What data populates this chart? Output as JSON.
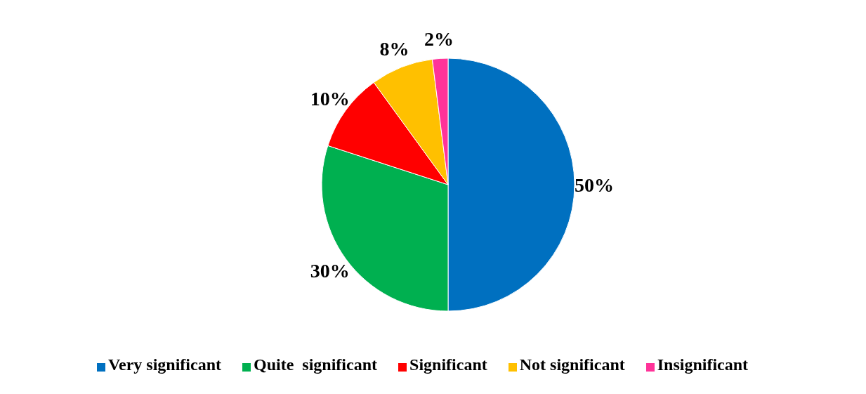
{
  "chart_data": {
    "type": "pie",
    "categories": [
      "Very significant",
      "Quite  significant",
      "Significant",
      "Not significant",
      "Insignificant"
    ],
    "values": [
      50,
      30,
      10,
      8,
      2
    ],
    "value_labels": [
      "50%",
      "30%",
      "10%",
      "8%",
      "2%"
    ],
    "colors": [
      "#0070c0",
      "#00b050",
      "#ff0000",
      "#ffc000",
      "#ff3399"
    ],
    "legend": "bottom"
  }
}
